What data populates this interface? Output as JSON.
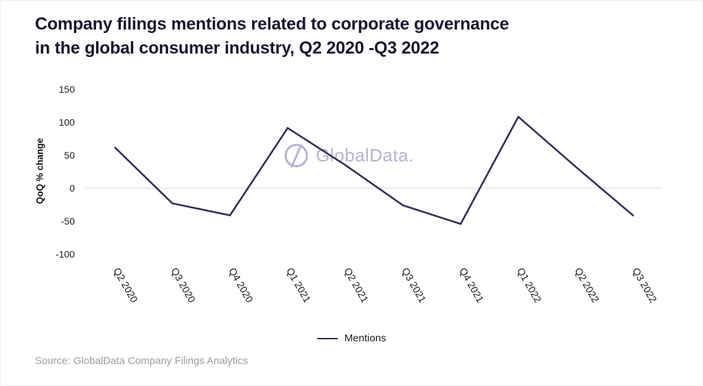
{
  "title": {
    "line1": "Company filings mentions related to corporate governance",
    "line2": "in the global consumer industry, Q2 2020 -Q3 2022"
  },
  "watermark": {
    "text": "GlobalData.",
    "icon": "globaldata-circle-slash-logo",
    "color": "#b7accd"
  },
  "legend": {
    "label": "Mentions"
  },
  "source": {
    "text": "Source: GlobalData Company Filings Analytics"
  },
  "colors": {
    "line": "#302d58",
    "title": "#15152e",
    "axis_text": "#1a1a1a",
    "gridline": "#e3e3e3",
    "source_text": "#9b9b9b"
  },
  "chart_data": {
    "type": "line",
    "title": "Company filings mentions related to corporate governance in the global consumer industry, Q2 2020 -Q3 2022",
    "categories": [
      "Q2 2020",
      "Q3 2020",
      "Q4 2020",
      "Q1 2021",
      "Q2 2021",
      "Q3 2021",
      "Q4 2021",
      "Q1 2022",
      "Q2 2022",
      "Q3 2022"
    ],
    "series": [
      {
        "name": "Mentions",
        "values": [
          62,
          -23,
          -41,
          91,
          35,
          -26,
          -54,
          108,
          32,
          -42
        ]
      }
    ],
    "xlabel": "",
    "ylabel": "QoQ % change",
    "yticks": [
      150,
      100,
      50,
      0,
      -50,
      -100
    ],
    "ylim": [
      -100,
      150
    ],
    "grid": "zero-baseline-only",
    "legend_position": "bottom-center",
    "x_tick_rotation_deg": 60
  }
}
